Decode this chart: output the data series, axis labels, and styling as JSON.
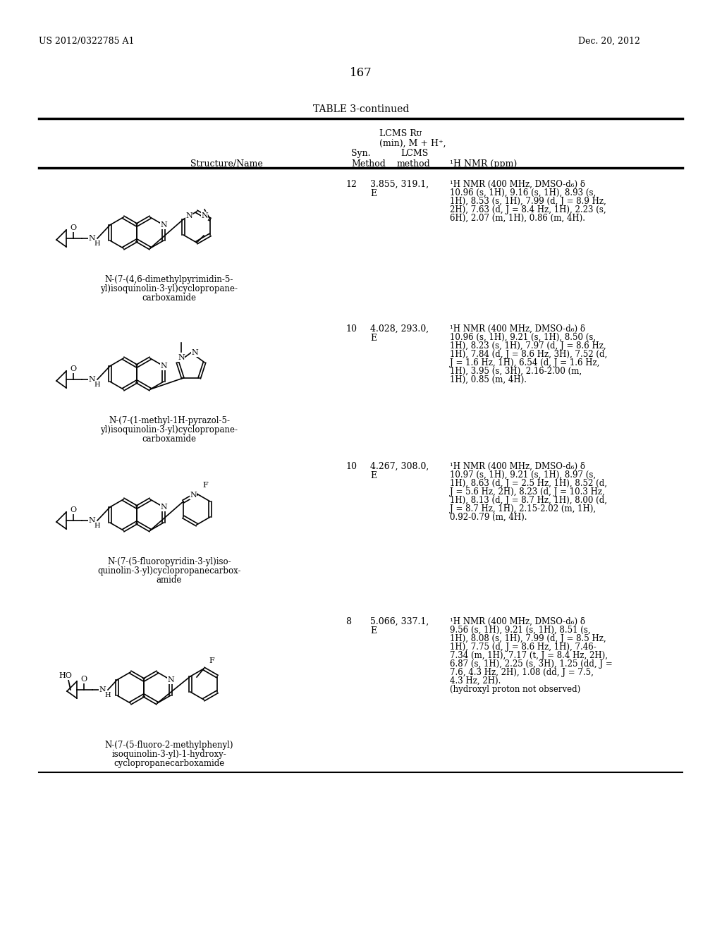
{
  "page_number": "167",
  "patent_number": "US 2012/0322785 A1",
  "patent_date": "Dec. 20, 2012",
  "table_title": "TABLE 3-continued",
  "rows": [
    {
      "syn_method": "12",
      "lcms": "3.855, 319.1,",
      "lcms2": "E",
      "nmr_lines": [
        "¹H NMR (400 MHz, DMSO-d₆) δ",
        "10.96 (s, 1H), 9.16 (s, 1H), 8.93 (s,",
        "1H), 8.53 (s, 1H), 7.99 (d, J = 8.9 Hz,",
        "2H), 7.63 (d, J = 8.4 Hz, 1H), 2.23 (s,",
        "6H), 2.07 (m, 1H), 0.86 (m, 4H)."
      ],
      "name_lines": [
        "N-(7-(4,6-dimethylpyrimidin-5-",
        "yl)isoquinolin-3-yl)cyclopropane-",
        "carboxamide"
      ]
    },
    {
      "syn_method": "10",
      "lcms": "4.028, 293.0,",
      "lcms2": "E",
      "nmr_lines": [
        "¹H NMR (400 MHz, DMSO-d₆) δ",
        "10.96 (s, 1H), 9.21 (s, 1H), 8.50 (s,",
        "1H), 8.23 (s, 1H), 7.97 (d, J = 8.6 Hz,",
        "1H), 7.84 (d, J = 8.6 Hz, 3H), 7.52 (d,",
        "J = 1.6 Hz, 1H), 6.54 (d, J = 1.6 Hz,",
        "1H), 3.95 (s, 3H), 2.16-2.00 (m,",
        "1H), 0.85 (m, 4H)."
      ],
      "name_lines": [
        "N-(7-(1-methyl-1H-pyrazol-5-",
        "yl)isoquinolin-3-yl)cyclopropane-",
        "carboxamide"
      ]
    },
    {
      "syn_method": "10",
      "lcms": "4.267, 308.0,",
      "lcms2": "E",
      "nmr_lines": [
        "¹H NMR (400 MHz, DMSO-d₆) δ",
        "10.97 (s, 1H), 9.21 (s, 1H), 8.97 (s,",
        "1H), 8.63 (d, J = 2.5 Hz, 1H), 8.52 (d,",
        "J = 5.6 Hz, 2H), 8.23 (d, J = 10.3 Hz,",
        "1H), 8.13 (d, J = 8.7 Hz, 1H), 8.00 (d,",
        "J = 8.7 Hz, 1H), 2.15-2.02 (m, 1H),",
        "0.92-0.79 (m, 4H)."
      ],
      "name_lines": [
        "N-(7-(5-fluoropyridin-3-yl)iso-",
        "quinolin-3-yl)cyclopropanecarbox-",
        "amide"
      ]
    },
    {
      "syn_method": "8",
      "lcms": "5.066, 337.1,",
      "lcms2": "E",
      "nmr_lines": [
        "¹H NMR (400 MHz, DMSO-d₆) δ",
        "9.56 (s, 1H), 9.21 (s, 1H), 8.51 (s,",
        "1H), 8.08 (s, 1H), 7.99 (d, J = 8.5 Hz,",
        "1H), 7.75 (d, J = 8.6 Hz, 1H), 7.46-",
        "7.34 (m, 1H), 7.17 (t, J = 8.4 Hz, 2H),",
        "6.87 (s, 1H), 2.25 (s, 3H), 1.25 (dd, J =",
        "7.6, 4.3 Hz, 2H), 1.08 (dd, J = 7.5,",
        "4.3 Hz, 2H).",
        "(hydroxyl proton not observed)"
      ],
      "name_lines": [
        "N-(7-(5-fluoro-2-methylphenyl)",
        "isoquinolin-3-yl)-1-hydroxy-",
        "cyclopropanecarboxamide"
      ]
    }
  ],
  "background_color": "#ffffff"
}
